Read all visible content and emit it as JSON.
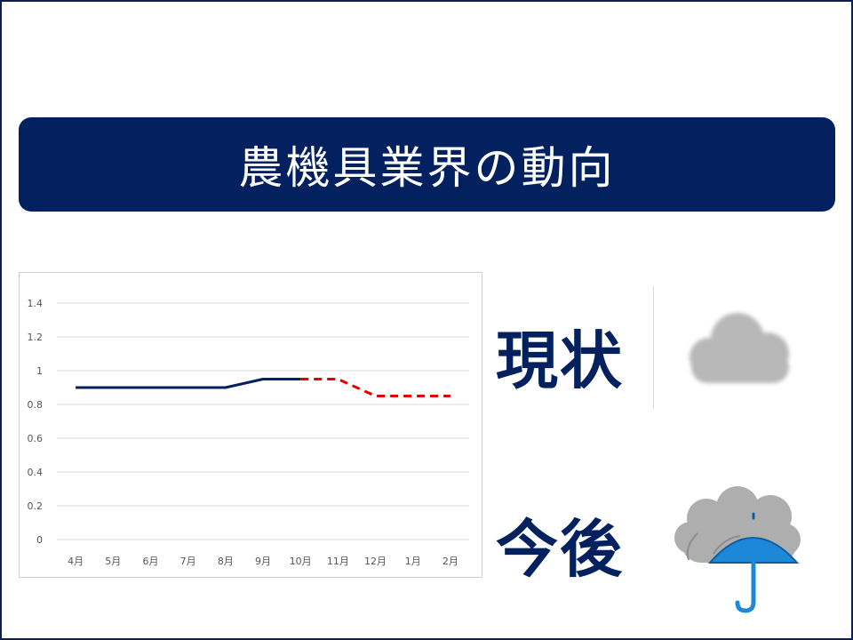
{
  "title": "農機具業界の動向",
  "current": {
    "label": "現状",
    "icon": "cloudy-icon"
  },
  "future": {
    "label": "今後",
    "icon": "rain-umbrella-icon"
  },
  "colors": {
    "frame": "#0f1f4d",
    "title_bg": "#03215e",
    "actual_line": "#03215e",
    "forecast_line": "#e00000",
    "cloud_gray": "#b8b8b8",
    "umbrella_blue": "#1e88d8"
  },
  "chart_data": {
    "type": "line",
    "categories": [
      "4月",
      "5月",
      "6月",
      "7月",
      "8月",
      "9月",
      "10月",
      "11月",
      "12月",
      "1月",
      "2月"
    ],
    "series": [
      {
        "style": "solid",
        "color": "#03215e",
        "values": [
          0.9,
          0.9,
          0.9,
          0.9,
          0.9,
          0.95,
          0.95,
          null,
          null,
          null,
          null
        ]
      },
      {
        "style": "dashed",
        "color": "#e00000",
        "values": [
          null,
          null,
          null,
          null,
          null,
          null,
          0.95,
          0.95,
          0.85,
          0.85,
          0.85
        ]
      }
    ],
    "yticks": [
      "0",
      "0.2",
      "0.4",
      "0.6",
      "0.8",
      "1",
      "1.2",
      "1.4"
    ],
    "ylim": [
      0,
      1.4
    ],
    "grid": true
  }
}
